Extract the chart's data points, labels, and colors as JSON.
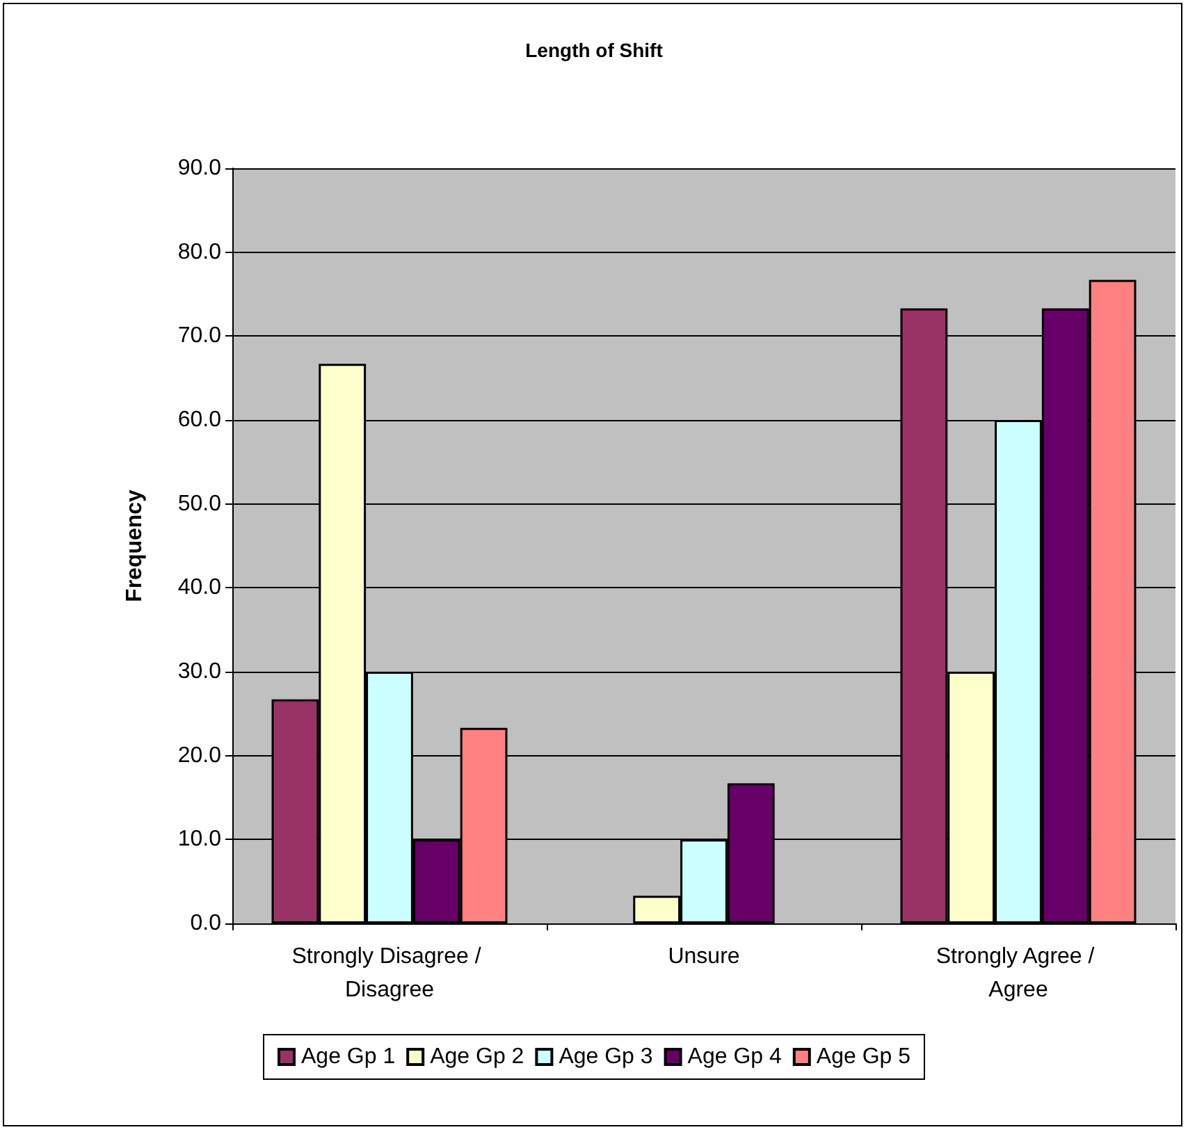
{
  "chart_data": {
    "type": "bar",
    "title": "Length of Shift",
    "ylabel": "Frequency",
    "categories": [
      "Strongly Disagree / Disagree",
      "Unsure",
      "Strongly Agree / Agree"
    ],
    "series": [
      {
        "name": "Age Gp 1",
        "color": "#993366",
        "values": [
          26.7,
          0,
          73.3
        ]
      },
      {
        "name": "Age Gp 2",
        "color": "#ffffcc",
        "values": [
          66.7,
          3.3,
          30.0
        ]
      },
      {
        "name": "Age Gp 3",
        "color": "#ccffff",
        "values": [
          30.0,
          10.0,
          60.0
        ]
      },
      {
        "name": "Age Gp 4",
        "color": "#660066",
        "values": [
          10.0,
          16.7,
          73.3
        ]
      },
      {
        "name": "Age Gp 5",
        "color": "#ff8080",
        "values": [
          23.3,
          0,
          76.7
        ]
      }
    ],
    "ylim": [
      0,
      90
    ],
    "yticks": [
      {
        "value": 0,
        "label": "0.0"
      },
      {
        "value": 10,
        "label": "10.0"
      },
      {
        "value": 20,
        "label": "20.0"
      },
      {
        "value": 30,
        "label": "30.0"
      },
      {
        "value": 40,
        "label": "40.0"
      },
      {
        "value": 50,
        "label": "50.0"
      },
      {
        "value": 60,
        "label": "60.0"
      },
      {
        "value": 70,
        "label": "70.0"
      },
      {
        "value": 80,
        "label": "80.0"
      },
      {
        "value": 90,
        "label": "90.0"
      }
    ],
    "grid": "y",
    "legend": "bottom"
  }
}
